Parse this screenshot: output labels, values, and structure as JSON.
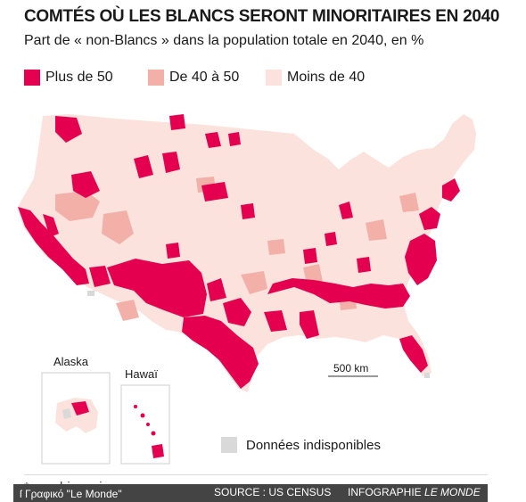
{
  "title": "COMTÉS OÙ LES BLANCS SERONT MINORITAIRES EN 2040",
  "subtitle": "Part de « non-Blancs » dans la population totale en 2040, en %",
  "legend": [
    {
      "label": "Plus de 50",
      "color": "#e4004f"
    },
    {
      "label": "De 40 à 50",
      "color": "#f2b0a8"
    },
    {
      "label": "Moins de 40",
      "color": "#fbe2dc"
    }
  ],
  "unavailable": {
    "label": "Données indisponibles",
    "color": "#d9d9d9"
  },
  "insets": {
    "alaska": "Alaska",
    "hawaii": "Hawaï"
  },
  "scale": {
    "label": "500 km"
  },
  "footnote": "* non-hispaniques",
  "footer": {
    "left": "ſ Γραφικό \"Le Monde\"",
    "source": "SOURCE : US CENSUS",
    "infographie": "INFOGRAPHIE",
    "publisher": "LE MONDE"
  }
}
